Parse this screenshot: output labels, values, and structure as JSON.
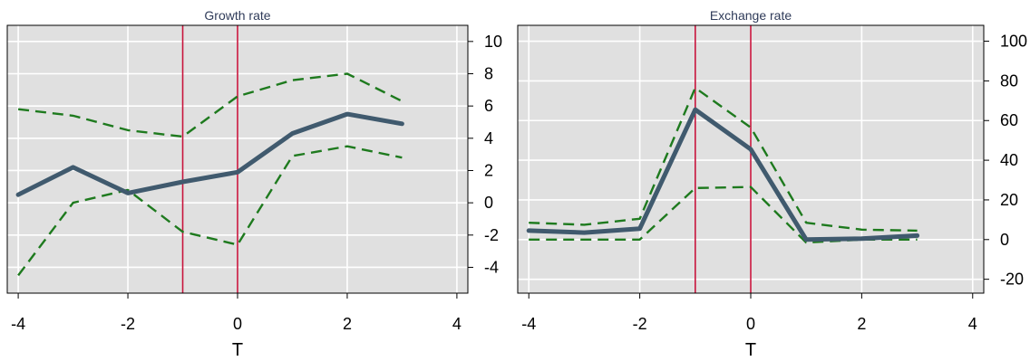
{
  "chart_data": [
    {
      "type": "line",
      "title": "Growth rate",
      "xlabel": "T",
      "ylabel": "",
      "xlim": [
        -4.2,
        4.2
      ],
      "ylim": [
        -5.6,
        11.0
      ],
      "xticks": [
        -4,
        -2,
        0,
        2,
        4
      ],
      "yticks": [
        -4,
        -2,
        0,
        2,
        4,
        6,
        8,
        10
      ],
      "y_axis_side": "right",
      "grid": true,
      "vlines": [
        -1,
        0
      ],
      "vline_color": "#c8143c",
      "series": [
        {
          "role": "estimate",
          "color": "#405a6e",
          "style": "solid",
          "x": [
            -4,
            -3,
            -2,
            -1,
            0,
            1,
            2,
            3
          ],
          "y": [
            0.5,
            2.2,
            0.6,
            1.3,
            1.9,
            4.3,
            5.5,
            4.9
          ]
        },
        {
          "role": "upper",
          "color": "#1e7a1e",
          "style": "dashed",
          "x": [
            -4,
            -3,
            -2,
            -1,
            0,
            1,
            2,
            3
          ],
          "y": [
            5.8,
            5.4,
            4.5,
            4.1,
            6.6,
            7.6,
            8.0,
            6.3
          ]
        },
        {
          "role": "lower",
          "color": "#1e7a1e",
          "style": "dashed",
          "x": [
            -4,
            -3,
            -2,
            -1,
            0,
            1,
            2,
            3
          ],
          "y": [
            -4.5,
            0.0,
            0.8,
            -1.8,
            -2.6,
            2.9,
            3.5,
            2.8
          ]
        }
      ]
    },
    {
      "type": "line",
      "title": "Exchange rate",
      "xlabel": "T",
      "ylabel": "",
      "xlim": [
        -4.2,
        4.2
      ],
      "ylim": [
        -27,
        108
      ],
      "xticks": [
        -4,
        -2,
        0,
        2,
        4
      ],
      "yticks": [
        -20,
        0,
        20,
        40,
        60,
        80,
        100
      ],
      "y_axis_side": "right",
      "grid": true,
      "vlines": [
        -1,
        0
      ],
      "vline_color": "#c8143c",
      "series": [
        {
          "role": "estimate",
          "color": "#405a6e",
          "style": "solid",
          "x": [
            -4,
            -3,
            -2,
            -1,
            0,
            1,
            2,
            3
          ],
          "y": [
            4.5,
            3.5,
            5.5,
            65.5,
            45.5,
            0.0,
            0.5,
            2.0
          ]
        },
        {
          "role": "upper",
          "color": "#1e7a1e",
          "style": "dashed",
          "x": [
            -4,
            -3,
            -2,
            -1,
            0,
            1,
            2,
            3
          ],
          "y": [
            8.5,
            7.5,
            10.5,
            76.5,
            56.5,
            8.5,
            5.0,
            4.5
          ]
        },
        {
          "role": "lower",
          "color": "#1e7a1e",
          "style": "dashed",
          "x": [
            -4,
            -3,
            -2,
            -1,
            0,
            1,
            2,
            3
          ],
          "y": [
            0.0,
            0.0,
            0.0,
            26.0,
            26.5,
            -1.5,
            0.0,
            0.0
          ]
        }
      ]
    }
  ]
}
